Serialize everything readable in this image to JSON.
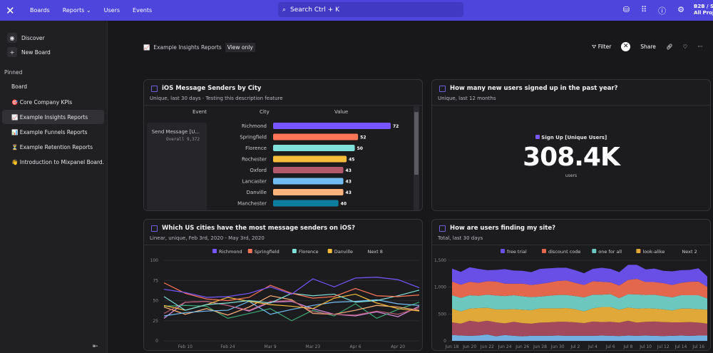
{
  "topbar": {
    "nav": [
      "Boards",
      "Reports",
      "Users",
      "Events"
    ],
    "search": "Search  Ctrl + K",
    "project": "B2B / S",
    "project_sub": "All Projec"
  },
  "sidebar": {
    "discover": "Discover",
    "new_board": "New Board",
    "pinned": "Pinned",
    "board": "Board",
    "items": [
      {
        "icon": "🎯",
        "label": "Core Company KPIs"
      },
      {
        "icon": "📈",
        "label": "Example Insights Reports",
        "selected": true
      },
      {
        "icon": "📊",
        "label": "Example Funnels Reports"
      },
      {
        "icon": "⏳",
        "label": "Example Retention Reports"
      },
      {
        "icon": "👋",
        "label": "Introduction to Mixpanel Board..."
      }
    ],
    "collapse": "⇤"
  },
  "header": {
    "breadcrumb_icon": "📈",
    "breadcrumb": "Example Insights Reports",
    "view_only": "View only",
    "filter": "Filter",
    "share": "Share"
  },
  "colors": {
    "accent": "#4d45dc",
    "purple": "#7856ff",
    "orange": "#ff7557",
    "teal": "#80e1d9",
    "yellow": "#f8bc3b",
    "maroon": "#b2596e",
    "blue": "#72bef4",
    "peach": "#ffb27a",
    "darkblue": "#0d7ea0"
  },
  "card1": {
    "title": "iOS Message Senders by City",
    "subtitle": "Unique, last 30 days · Testing this description feature",
    "headers": [
      "Event",
      "City",
      "Value"
    ],
    "event": "Send Message [U...",
    "overall_label": "Overall",
    "overall": "9,372"
  },
  "card2": {
    "title": "How many new users signed up in the past year?",
    "subtitle": "Unique, last 12 months",
    "legend": "Sign Up [Unique Users]",
    "value": "308.4K",
    "unit": "users"
  },
  "card3": {
    "title": "Which US cities have the most message senders on iOS?",
    "subtitle": "Linear, unique, Feb 3rd, 2020 - May 3rd, 2020",
    "next": "Next 8"
  },
  "card4": {
    "title": "How are users finding my site?",
    "subtitle": "Total, last 30 days",
    "next": "Next 2"
  },
  "chart_data": [
    {
      "type": "bar",
      "categories": [
        "Richmond",
        "Springfield",
        "Florence",
        "Rochester",
        "Oxford",
        "Lancaster",
        "Danville",
        "Manchester"
      ],
      "values": [
        72,
        52,
        50,
        45,
        43,
        43,
        43,
        40
      ],
      "colors": [
        "#7856ff",
        "#ff7557",
        "#80e1d9",
        "#f8bc3b",
        "#b2596e",
        "#72bef4",
        "#ffb27a",
        "#0d7ea0"
      ]
    },
    {
      "type": "line",
      "x": [
        "Feb 3",
        "Feb 10",
        "Feb 17",
        "Feb 24",
        "Mar 2",
        "Mar 9",
        "Mar 16",
        "Mar 23",
        "Mar 30",
        "Apr 6",
        "Apr 13",
        "Apr 20",
        "Apr 27"
      ],
      "xticks": [
        "Feb 10",
        "Feb 24",
        "Mar 9",
        "Mar 23",
        "Apr 6",
        "Apr 20"
      ],
      "yticks": [
        0,
        25,
        50,
        75,
        100
      ],
      "ylim": [
        0,
        100
      ],
      "series": [
        {
          "name": "Richmond",
          "color": "#7856ff",
          "values": [
            64,
            60,
            54,
            55,
            59,
            67,
            58,
            77,
            67,
            78,
            79,
            76,
            66
          ]
        },
        {
          "name": "Springfield",
          "color": "#ff7557",
          "values": [
            72,
            59,
            52,
            50,
            54,
            69,
            59,
            53,
            55,
            65,
            56,
            55,
            57
          ]
        },
        {
          "name": "Florence",
          "color": "#80e1d9",
          "values": [
            55,
            38,
            45,
            47,
            50,
            47,
            59,
            56,
            58,
            48,
            50,
            56,
            63
          ]
        },
        {
          "name": "Danville",
          "color": "#f8bc3b",
          "values": [
            44,
            38,
            45,
            54,
            49,
            45,
            43,
            40,
            53,
            58,
            47,
            40,
            37
          ]
        },
        {
          "color": "#b2596e",
          "values": [
            34,
            48,
            49,
            44,
            38,
            49,
            50,
            36,
            33,
            32,
            37,
            33,
            41
          ]
        },
        {
          "color": "#72bef4",
          "values": [
            31,
            35,
            37,
            38,
            49,
            33,
            39,
            44,
            48,
            49,
            51,
            46,
            44
          ]
        },
        {
          "color": "#ffb27a",
          "values": [
            42,
            33,
            40,
            32,
            42,
            56,
            51,
            34,
            33,
            38,
            44,
            42,
            38
          ]
        },
        {
          "color": "#3ba974",
          "values": [
            43,
            44,
            43,
            28,
            34,
            40,
            25,
            38,
            31,
            46,
            28,
            39,
            48
          ]
        },
        {
          "color": "#d88ee0",
          "values": [
            28,
            48,
            49,
            44,
            37,
            48,
            49,
            40,
            33,
            31,
            36,
            30,
            43
          ]
        }
      ]
    },
    {
      "type": "area",
      "stacked": true,
      "xticks": [
        "Jun 18",
        "Jun 20",
        "Jun 22",
        "Jun 24",
        "Jun 26",
        "Jun 28",
        "Jun 30",
        "Jul 2",
        "Jul 4",
        "Jul 6",
        "Jul 8",
        "Jul 10",
        "Jul 12",
        "Jul 14",
        "Jul 16"
      ],
      "yticks": [
        0,
        500,
        1000,
        1500
      ],
      "ylim": [
        0,
        1500
      ],
      "series": [
        {
          "color": "#72b0e0",
          "values": [
            110,
            100,
            95,
            100,
            120,
            85,
            110,
            95,
            85,
            95,
            95,
            95,
            100,
            95,
            95,
            95,
            95,
            100,
            95,
            90,
            100,
            95,
            100,
            95,
            90,
            95,
            100,
            95,
            100,
            100
          ]
        },
        {
          "color": "#a2495e",
          "values": [
            235,
            220,
            280,
            250,
            255,
            260,
            215,
            260,
            245,
            225,
            245,
            250,
            255,
            260,
            250,
            235,
            265,
            250,
            260,
            250,
            275,
            245,
            255,
            265,
            260,
            250,
            245,
            255,
            240,
            220
          ]
        },
        {
          "name": "look-alike",
          "color": "#e0a838",
          "values": [
            255,
            230,
            225,
            260,
            240,
            240,
            260,
            235,
            250,
            250,
            265,
            260,
            250,
            255,
            245,
            220,
            245,
            280,
            275,
            240,
            245,
            260,
            250,
            240,
            235,
            220,
            255,
            250,
            250,
            260
          ]
        },
        {
          "name": "one for all",
          "color": "#6cc7bf",
          "values": [
            250,
            250,
            250,
            230,
            245,
            260,
            250,
            260,
            250,
            245,
            220,
            235,
            250,
            245,
            245,
            260,
            255,
            230,
            240,
            215,
            250,
            265,
            250,
            260,
            250,
            245,
            250,
            250,
            260,
            210
          ]
        },
        {
          "name": "discount code",
          "color": "#e2674d",
          "values": [
            255,
            245,
            250,
            240,
            250,
            260,
            230,
            215,
            235,
            225,
            235,
            245,
            260,
            270,
            245,
            230,
            250,
            240,
            220,
            235,
            265,
            290,
            240,
            235,
            240,
            230,
            230,
            250,
            255,
            215
          ]
        },
        {
          "name": "free trial",
          "color": "#6a4fe6",
          "values": [
            240,
            240,
            270,
            260,
            205,
            215,
            270,
            245,
            240,
            240,
            280,
            265,
            245,
            235,
            235,
            220,
            230,
            260,
            250,
            250,
            280,
            260,
            235,
            250,
            230,
            255,
            235,
            220,
            245,
            195
          ]
        }
      ]
    }
  ]
}
